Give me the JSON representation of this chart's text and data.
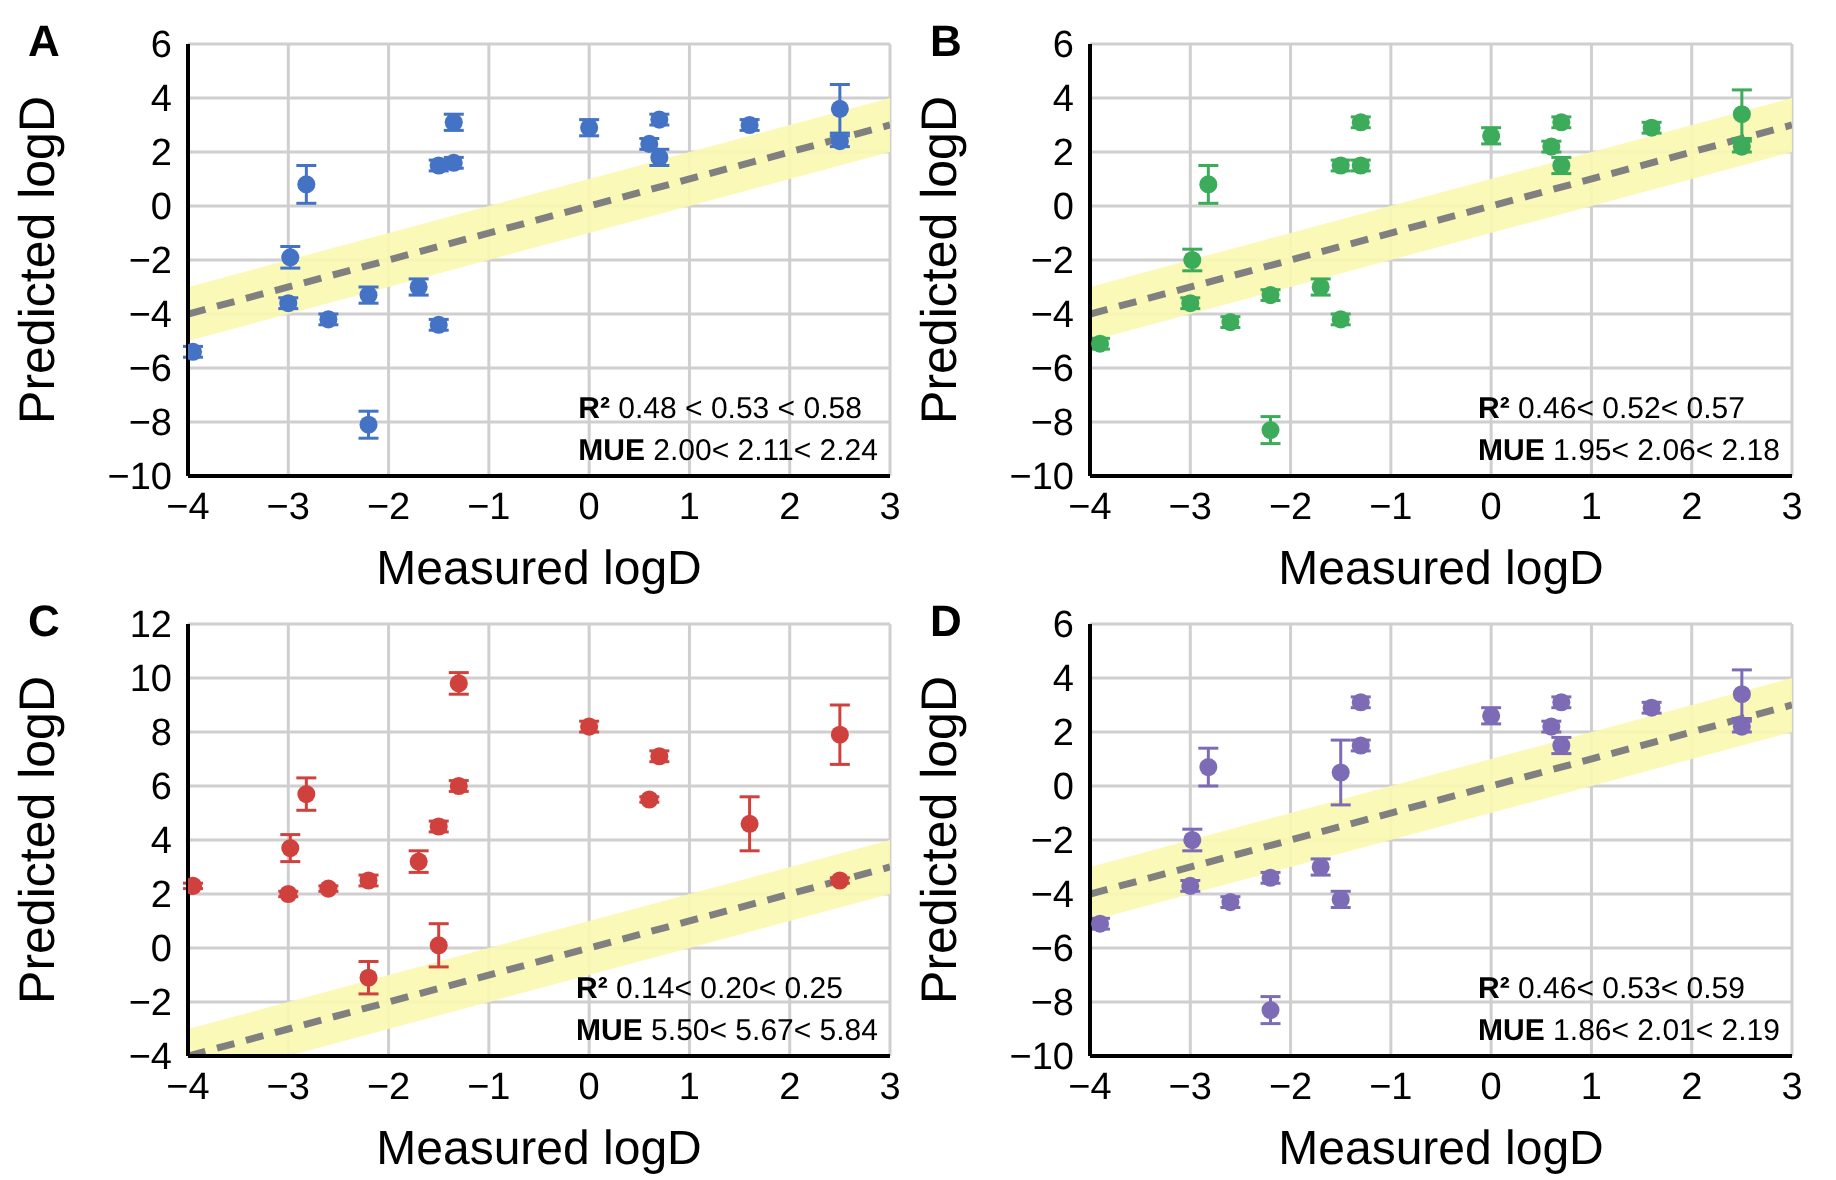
{
  "chart_data": [
    {
      "type": "scatter",
      "title": "A",
      "xlabel": "Measured logD",
      "ylabel": "Predicted logD",
      "xlim": [
        -4,
        3
      ],
      "xticks": [
        -4,
        -3,
        -2,
        -1,
        0,
        1,
        2,
        3
      ],
      "ylim": [
        -10,
        6
      ],
      "yticks": [
        -10,
        -8,
        -6,
        -4,
        -2,
        0,
        2,
        4,
        6
      ],
      "grid": true,
      "annotations": [
        "R² 0.48 < 0.53 < 0.58",
        "MUE 2.00< 2.11< 2.24"
      ],
      "series": [
        {
          "type": "line",
          "color": "#808080",
          "line_style": "dashed",
          "x": [
            -4,
            3
          ],
          "values": [
            -4,
            3
          ],
          "lower": [
            -5,
            2
          ],
          "upper": [
            -3,
            4
          ]
        },
        {
          "marker": "circle",
          "color": "#4472c4",
          "x": [
            -3.95,
            -3.0,
            -2.98,
            -2.82,
            -2.6,
            -2.2,
            -2.2,
            -1.7,
            -1.5,
            -1.5,
            -1.35,
            -1.35,
            0,
            0.6,
            0.7,
            0.7,
            1.6,
            2.5,
            2.5
          ],
          "values": [
            -5.4,
            -3.6,
            -1.9,
            0.8,
            -4.2,
            -3.3,
            -8.1,
            -3.0,
            -4.4,
            1.5,
            1.6,
            3.1,
            2.9,
            2.3,
            3.2,
            1.8,
            3.0,
            3.6,
            2.4
          ],
          "errors": [
            0.2,
            0.2,
            0.4,
            0.7,
            0.2,
            0.3,
            0.5,
            0.3,
            0.2,
            0.2,
            0.2,
            0.3,
            0.3,
            0.2,
            0.2,
            0.3,
            0.2,
            0.9,
            0.2
          ]
        }
      ]
    },
    {
      "type": "scatter",
      "title": "B",
      "xlabel": "Measured logD",
      "ylabel": "Predicted logD",
      "xlim": [
        -4,
        3
      ],
      "xticks": [
        -4,
        -3,
        -2,
        -1,
        0,
        1,
        2,
        3
      ],
      "ylim": [
        -10,
        6
      ],
      "yticks": [
        -10,
        -8,
        -6,
        -4,
        -2,
        0,
        2,
        4,
        6
      ],
      "grid": true,
      "annotations": [
        "R² 0.46< 0.52< 0.57",
        "MUE 1.95< 2.06< 2.18"
      ],
      "series": [
        {
          "type": "line",
          "color": "#808080",
          "line_style": "dashed",
          "x": [
            -4,
            3
          ],
          "values": [
            -4,
            3
          ],
          "lower": [
            -5,
            2
          ],
          "upper": [
            -3,
            4
          ]
        },
        {
          "marker": "circle",
          "color": "#3cab5a",
          "x": [
            -3.9,
            -3.0,
            -2.98,
            -2.82,
            -2.6,
            -2.2,
            -2.2,
            -1.7,
            -1.5,
            -1.5,
            -1.3,
            -1.3,
            0,
            0.6,
            0.7,
            0.7,
            1.6,
            2.5,
            2.5
          ],
          "values": [
            -5.1,
            -3.6,
            -2.0,
            0.8,
            -4.3,
            -3.3,
            -8.3,
            -3.0,
            -4.2,
            1.5,
            1.5,
            3.1,
            2.6,
            2.2,
            3.1,
            1.5,
            2.9,
            3.4,
            2.2
          ],
          "errors": [
            0.2,
            0.2,
            0.4,
            0.7,
            0.2,
            0.2,
            0.5,
            0.3,
            0.2,
            0.2,
            0.2,
            0.2,
            0.3,
            0.2,
            0.2,
            0.3,
            0.2,
            0.9,
            0.2
          ]
        }
      ]
    },
    {
      "type": "scatter",
      "title": "C",
      "xlabel": "Measured logD",
      "ylabel": "Predicted logD",
      "xlim": [
        -4,
        3
      ],
      "xticks": [
        -4,
        -3,
        -2,
        -1,
        0,
        1,
        2,
        3
      ],
      "ylim": [
        -4,
        12
      ],
      "yticks": [
        -4,
        -2,
        0,
        2,
        4,
        6,
        8,
        10,
        12
      ],
      "grid": true,
      "annotations": [
        "R² 0.14< 0.20< 0.25",
        "MUE 5.50< 5.67< 5.84"
      ],
      "series": [
        {
          "type": "line",
          "color": "#808080",
          "line_style": "dashed",
          "x": [
            -4,
            -3,
            3
          ],
          "values": [
            -4,
            -3,
            3
          ],
          "lower": [
            -4,
            -4,
            2
          ],
          "upper": [
            -3,
            -2,
            4
          ]
        },
        {
          "marker": "circle",
          "color": "#d0413e",
          "x": [
            -3.95,
            -3.0,
            -2.98,
            -2.82,
            -2.6,
            -2.2,
            -2.2,
            -1.7,
            -1.5,
            -1.5,
            -1.3,
            -1.3,
            0,
            0.6,
            0.7,
            1.6,
            2.5,
            2.5
          ],
          "values": [
            2.3,
            2.0,
            3.7,
            5.7,
            2.2,
            2.5,
            -1.1,
            3.2,
            0.1,
            4.5,
            6.0,
            9.8,
            8.2,
            5.5,
            7.1,
            4.6,
            7.9,
            2.5
          ],
          "errors": [
            0.1,
            0.1,
            0.5,
            0.6,
            0.1,
            0.2,
            0.6,
            0.4,
            0.8,
            0.2,
            0.2,
            0.4,
            0.2,
            0.1,
            0.2,
            1.0,
            1.1,
            0.1
          ]
        }
      ]
    },
    {
      "type": "scatter",
      "title": "D",
      "xlabel": "Measured logD",
      "ylabel": "Predicted logD",
      "xlim": [
        -4,
        3
      ],
      "xticks": [
        -4,
        -3,
        -2,
        -1,
        0,
        1,
        2,
        3
      ],
      "ylim": [
        -10,
        6
      ],
      "yticks": [
        -10,
        -8,
        -6,
        -4,
        -2,
        0,
        2,
        4,
        6
      ],
      "grid": true,
      "annotations": [
        "R² 0.46< 0.53< 0.59",
        "MUE 1.86< 2.01< 2.19"
      ],
      "series": [
        {
          "type": "line",
          "color": "#808080",
          "line_style": "dashed",
          "x": [
            -4,
            3
          ],
          "values": [
            -4,
            3
          ],
          "lower": [
            -5,
            2
          ],
          "upper": [
            -3,
            4
          ]
        },
        {
          "marker": "circle",
          "color": "#7e6bb5",
          "x": [
            -3.9,
            -3.0,
            -2.98,
            -2.82,
            -2.6,
            -2.2,
            -2.2,
            -1.7,
            -1.5,
            -1.5,
            -1.3,
            -1.3,
            0,
            0.6,
            0.7,
            0.7,
            1.6,
            2.5,
            2.5
          ],
          "values": [
            -5.1,
            -3.7,
            -2.0,
            0.7,
            -4.3,
            -3.4,
            -8.3,
            -3.0,
            -4.2,
            0.5,
            1.5,
            3.1,
            2.6,
            2.2,
            3.1,
            1.5,
            2.9,
            3.4,
            2.2
          ],
          "errors": [
            0.2,
            0.2,
            0.4,
            0.7,
            0.2,
            0.2,
            0.5,
            0.3,
            0.3,
            1.2,
            0.2,
            0.2,
            0.3,
            0.2,
            0.2,
            0.3,
            0.2,
            0.9,
            0.2
          ]
        }
      ]
    }
  ]
}
